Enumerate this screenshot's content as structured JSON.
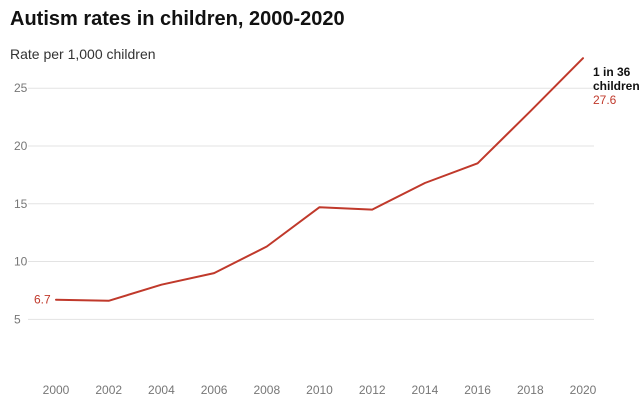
{
  "chart_data": {
    "type": "line",
    "title": "Autism rates in children, 2000-2020",
    "subtitle": "Rate per 1,000 children",
    "x": [
      2000,
      2002,
      2004,
      2006,
      2008,
      2010,
      2012,
      2014,
      2016,
      2018,
      2020
    ],
    "series": [
      {
        "values": [
          6.7,
          6.6,
          8.0,
          9.0,
          11.3,
          14.7,
          14.5,
          16.8,
          18.5,
          23.0,
          27.6
        ]
      }
    ],
    "x_ticks": [
      "2000",
      "2002",
      "2004",
      "2006",
      "2008",
      "2010",
      "2012",
      "2014",
      "2016",
      "2018",
      "2020"
    ],
    "y_ticks": [
      5,
      10,
      15,
      20,
      25
    ],
    "xlim": [
      2000,
      2020
    ],
    "ylim": [
      2,
      29
    ],
    "grid": true,
    "data_labels": {
      "start": "6.7",
      "end": "27.6"
    },
    "annotation": [
      "1 in 36",
      "children"
    ],
    "colors": {
      "line": "#c0392b",
      "label": "#c0392b",
      "grid": "#e3e3e3"
    }
  }
}
